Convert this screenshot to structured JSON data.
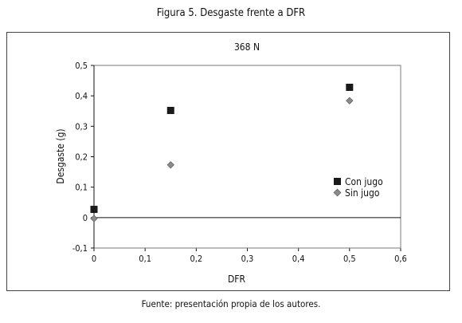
{
  "figure_title": "Figura 5. Desgaste frente a DFR",
  "caption": "Fuente: presentación propia de los autores.",
  "chart_data": {
    "type": "scatter",
    "title": "368 N",
    "xlabel": "DFR",
    "ylabel": "Desgaste (g)",
    "xlim": [
      0,
      0.6
    ],
    "ylim": [
      -0.1,
      0.5
    ],
    "x_ticks": [
      0,
      0.1,
      0.2,
      0.3,
      0.4,
      0.5,
      0.6
    ],
    "y_ticks": [
      -0.1,
      0,
      0.1,
      0.2,
      0.3,
      0.4,
      0.5
    ],
    "x_tick_labels": [
      "0",
      "0,1",
      "0,2",
      "0,3",
      "0,4",
      "0,5",
      "0,6"
    ],
    "y_tick_labels": [
      "-0,1",
      "0",
      "0,1",
      "0,2",
      "0,3",
      "0,4",
      "0,5"
    ],
    "grid": false,
    "legend_position": "right",
    "series": [
      {
        "name": "Con jugo",
        "marker": "square",
        "color": "#1a1a1a",
        "x": [
          0,
          0.15,
          0.5
        ],
        "y": [
          0.027,
          0.352,
          0.428
        ]
      },
      {
        "name": "Sin jugo",
        "marker": "diamond",
        "color": "#8a8a8a",
        "x": [
          0,
          0.15,
          0.5
        ],
        "y": [
          -0.003,
          0.173,
          0.384
        ]
      }
    ]
  }
}
